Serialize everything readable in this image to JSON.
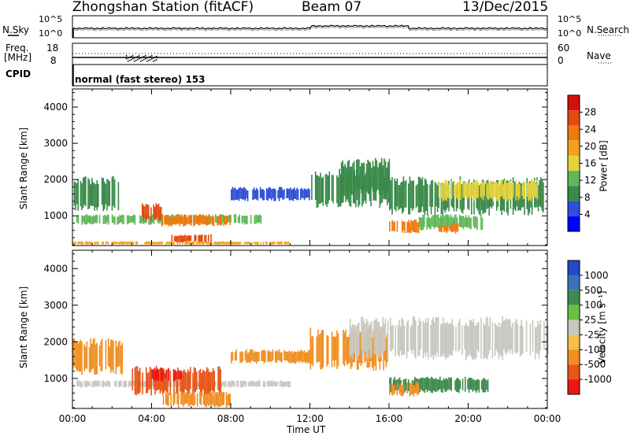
{
  "header": {
    "station": "Zhongshan Station (fitACF)",
    "beam": "Beam 07",
    "date": "13/Dec/2015"
  },
  "panels": {
    "nsky_label": "N.Sky",
    "nsky_ticks": [
      "10^5",
      "10^0"
    ],
    "nsearch_label": "N.Search",
    "nsearch_ticks": [
      "10^5",
      "10^0"
    ],
    "freq_label": "Freq.",
    "freq_unit": "[MHz]",
    "freq_ticks": [
      "18",
      "8"
    ],
    "nave_label": "Nave",
    "nave_ticks": [
      "60",
      "0"
    ],
    "cpid_label": "CPID",
    "cpid_text": "normal (fast stereo) 153"
  },
  "colors": {
    "power_scale": [
      "#0000ff",
      "#2f4fd6",
      "#3a8a4a",
      "#5fb85a",
      "#e3d23b",
      "#f0a31a",
      "#ef7a10",
      "#e24a12",
      "#d21010"
    ],
    "velocity_scale": [
      "#2648c4",
      "#3a72b8",
      "#3f8a4e",
      "#6bbf45",
      "#c8c8c0",
      "#f5c04a",
      "#f08f22",
      "#e8551a",
      "#ef1515"
    ]
  },
  "chart_data": [
    {
      "type": "heatmap",
      "quantity": "Power",
      "ylabel": "Slant Range [km]",
      "yticks": [
        1000,
        2000,
        3000,
        4000
      ],
      "ylim": [
        180,
        4500
      ],
      "xlim": [
        "00:00",
        "24:00"
      ],
      "colorbar_label": "Power [dB]",
      "colorbar_ticks": [
        4,
        8,
        12,
        16,
        20,
        24,
        28
      ],
      "regions": [
        {
          "t0": 0.0,
          "t1": 2.3,
          "r0": 1100,
          "r1": 2100,
          "value": 8
        },
        {
          "t0": 0.2,
          "t1": 9.5,
          "r0": 750,
          "r1": 1050,
          "value": 12
        },
        {
          "t0": 3.5,
          "t1": 4.5,
          "r0": 850,
          "r1": 1350,
          "value": 26
        },
        {
          "t0": 4.5,
          "t1": 8.0,
          "r0": 700,
          "r1": 1050,
          "value": 22
        },
        {
          "t0": 5.0,
          "t1": 7.0,
          "r0": 250,
          "r1": 500,
          "value": 25
        },
        {
          "t0": 0.0,
          "t1": 11.0,
          "r0": 200,
          "r1": 300,
          "value": 18
        },
        {
          "t0": 8.0,
          "t1": 12.0,
          "r0": 1400,
          "r1": 1800,
          "value": 7
        },
        {
          "t0": 12.0,
          "t1": 16.0,
          "r0": 1200,
          "r1": 2300,
          "value": 8
        },
        {
          "t0": 13.5,
          "t1": 16.0,
          "r0": 1500,
          "r1": 2600,
          "value": 10
        },
        {
          "t0": 16.0,
          "t1": 23.8,
          "r0": 1000,
          "r1": 2100,
          "value": 9
        },
        {
          "t0": 18.5,
          "t1": 23.6,
          "r0": 1400,
          "r1": 2000,
          "value": 16
        },
        {
          "t0": 16.0,
          "t1": 17.5,
          "r0": 500,
          "r1": 900,
          "value": 22
        },
        {
          "t0": 17.5,
          "t1": 20.8,
          "r0": 600,
          "r1": 1050,
          "value": 13
        },
        {
          "t0": 18.5,
          "t1": 19.5,
          "r0": 500,
          "r1": 800,
          "value": 24
        }
      ]
    },
    {
      "type": "heatmap",
      "quantity": "Velocity",
      "ylabel": "Slant Range [km]",
      "yticks": [
        1000,
        2000,
        3000,
        4000
      ],
      "ylim": [
        180,
        4500
      ],
      "xticks": [
        "00:00",
        "04:00",
        "08:00",
        "12:00",
        "16:00",
        "20:00",
        "00:00"
      ],
      "xlim": [
        "00:00",
        "24:00"
      ],
      "xlabel": "Time UT",
      "colorbar_label": "Velocity [m s⁻¹]",
      "colorbar_ticks": [
        1000,
        500,
        100,
        25,
        -25,
        -100,
        -500,
        -1000
      ],
      "regions": [
        {
          "t0": 0.0,
          "t1": 2.5,
          "r0": 1100,
          "r1": 2100,
          "value": -200
        },
        {
          "t0": 0.2,
          "t1": 11.0,
          "r0": 750,
          "r1": 950,
          "value": 0
        },
        {
          "t0": 3.0,
          "t1": 7.5,
          "r0": 500,
          "r1": 1350,
          "value": -600
        },
        {
          "t0": 4.0,
          "t1": 5.5,
          "r0": 900,
          "r1": 1300,
          "value": -1100
        },
        {
          "t0": 4.5,
          "t1": 8.0,
          "r0": 200,
          "r1": 650,
          "value": -400
        },
        {
          "t0": 8.0,
          "t1": 12.0,
          "r0": 1400,
          "r1": 1800,
          "value": -150
        },
        {
          "t0": 12.0,
          "t1": 16.0,
          "r0": 1200,
          "r1": 2400,
          "value": -250
        },
        {
          "t0": 14.0,
          "t1": 24.0,
          "r0": 1500,
          "r1": 2700,
          "value": 0
        },
        {
          "t0": 16.0,
          "t1": 21.0,
          "r0": 600,
          "r1": 1050,
          "value": 150
        },
        {
          "t0": 16.0,
          "t1": 17.5,
          "r0": 500,
          "r1": 900,
          "value": -300
        }
      ]
    }
  ]
}
